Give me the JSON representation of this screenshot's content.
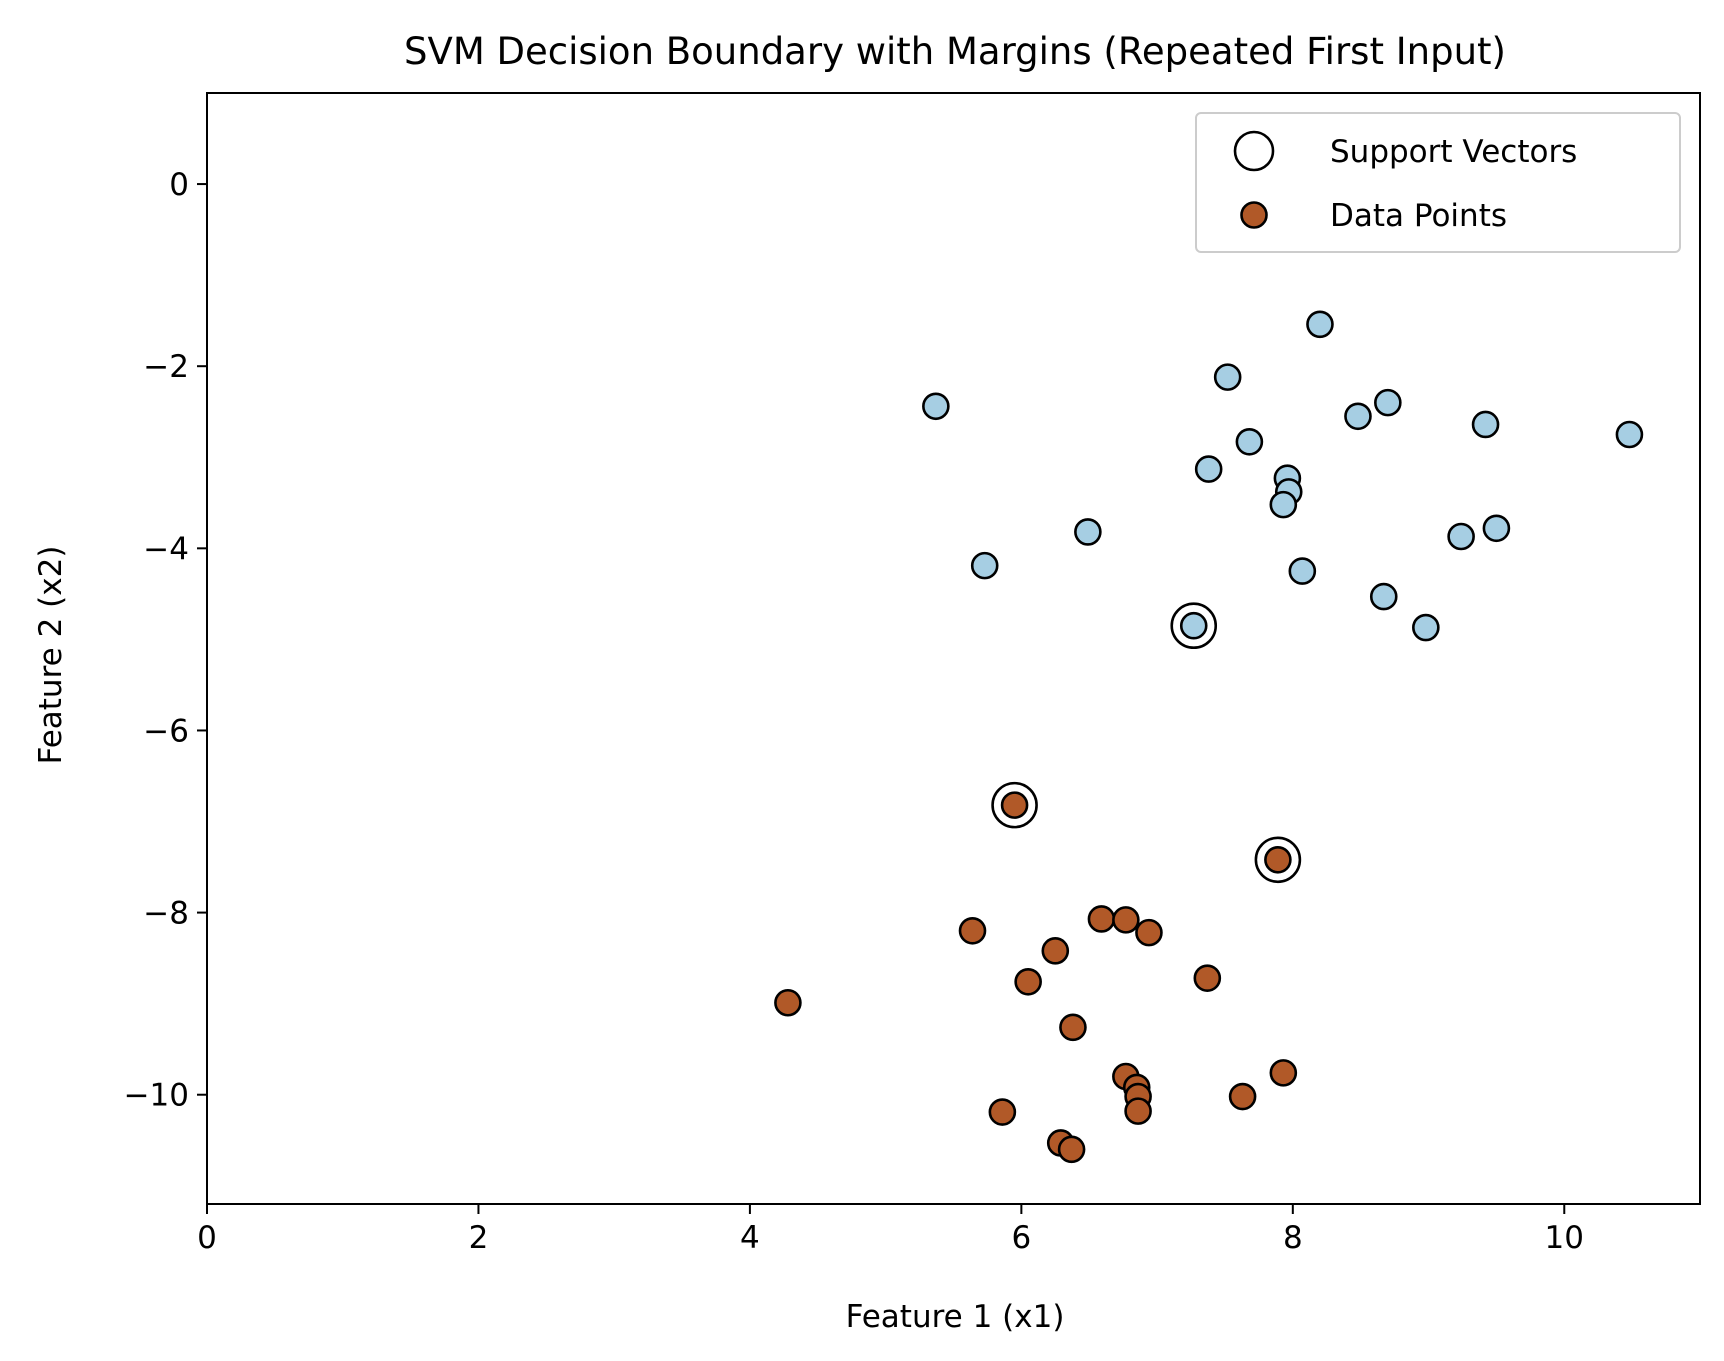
{
  "chart_data": {
    "type": "scatter",
    "title": "SVM Decision Boundary with Margins (Repeated First Input)",
    "xlabel": "Feature 1 (x1)",
    "ylabel": "Feature 2 (x2)",
    "xlim": [
      0,
      11
    ],
    "ylim": [
      -11.2,
      1.0
    ],
    "xticks": [
      0,
      2,
      4,
      6,
      8,
      10
    ],
    "xtick_labels": [
      "0",
      "2",
      "4",
      "6",
      "8",
      "10"
    ],
    "yticks": [
      0,
      -2,
      -4,
      -6,
      -8,
      -10
    ],
    "ytick_labels": [
      "0",
      "−2",
      "−4",
      "−6",
      "−8",
      "−10"
    ],
    "grid": false,
    "legend": {
      "position": "top-right",
      "entries": [
        {
          "label": "Support Vectors",
          "marker": "hollow-circle"
        },
        {
          "label": "Data Points",
          "marker": "filled-circle"
        }
      ]
    },
    "colors": {
      "class_a": "#a6cee3",
      "class_b": "#b15928",
      "edge": "#000000"
    },
    "series": [
      {
        "class": "class_a",
        "x": [
          8.2,
          7.52,
          5.37,
          8.7,
          8.48,
          9.42,
          10.48,
          7.68,
          7.38,
          7.96,
          7.97,
          7.93,
          6.49,
          9.5,
          9.24,
          5.73,
          8.07,
          8.67,
          8.98,
          7.27
        ],
        "y": [
          -1.54,
          -2.12,
          -2.44,
          -2.4,
          -2.55,
          -2.64,
          -2.75,
          -2.83,
          -3.13,
          -3.23,
          -3.38,
          -3.52,
          -3.82,
          -3.78,
          -3.87,
          -4.19,
          -4.25,
          -4.53,
          -4.87,
          -4.85
        ]
      },
      {
        "class": "class_b",
        "x": [
          5.95,
          7.89,
          6.59,
          6.77,
          6.94,
          5.64,
          6.25,
          6.05,
          7.37,
          4.28,
          6.38,
          6.77,
          6.85,
          6.86,
          7.93,
          7.63,
          5.86,
          6.86,
          6.29,
          6.37
        ],
        "y": [
          -6.82,
          -7.42,
          -8.07,
          -8.08,
          -8.22,
          -8.2,
          -8.42,
          -8.76,
          -8.72,
          -8.99,
          -9.26,
          -9.8,
          -9.92,
          -10.02,
          -9.76,
          -10.02,
          -10.19,
          -10.18,
          -10.53,
          -10.6
        ]
      }
    ],
    "support_vectors": {
      "x": [
        7.27,
        5.95,
        7.89
      ],
      "y": [
        -4.85,
        -6.82,
        -7.42
      ]
    }
  }
}
